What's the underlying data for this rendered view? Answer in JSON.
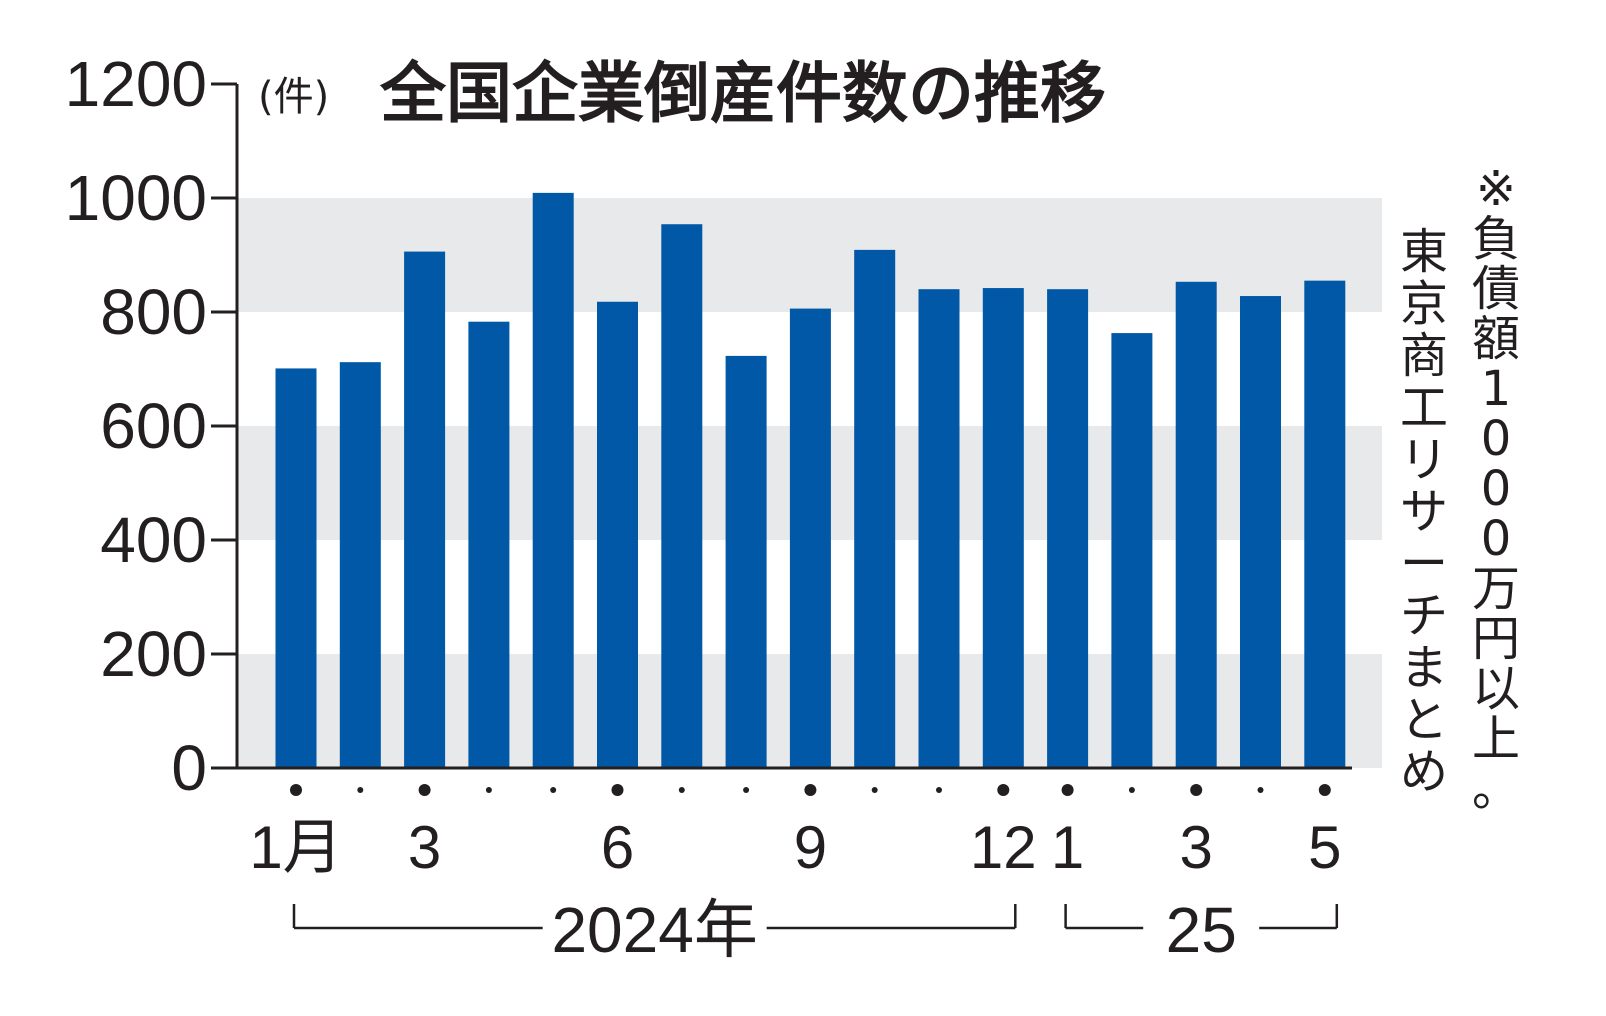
{
  "chart_data": {
    "type": "bar",
    "title": "全国企業倒産件数の推移",
    "unit_label": "(件)",
    "categories": [
      "2024-01",
      "2024-02",
      "2024-03",
      "2024-04",
      "2024-05",
      "2024-06",
      "2024-07",
      "2024-08",
      "2024-09",
      "2024-10",
      "2024-11",
      "2024-12",
      "2025-01",
      "2025-02",
      "2025-03",
      "2025-04",
      "2025-05"
    ],
    "values": [
      701,
      712,
      906,
      783,
      1009,
      818,
      954,
      723,
      806,
      909,
      840,
      842,
      840,
      763,
      853,
      828,
      855
    ],
    "ylim": [
      0,
      1200
    ],
    "yticks": [
      "0",
      "200",
      "400",
      "600",
      "800",
      "1000",
      "1200"
    ],
    "x_tick_labels": [
      {
        "index": 0,
        "text": "1月"
      },
      {
        "index": 2,
        "text": "3"
      },
      {
        "index": 5,
        "text": "6"
      },
      {
        "index": 8,
        "text": "9"
      },
      {
        "index": 11,
        "text": "12"
      },
      {
        "index": 12,
        "text": "1"
      },
      {
        "index": 14,
        "text": "3"
      },
      {
        "index": 16,
        "text": "5"
      }
    ],
    "year_groups": [
      {
        "label": "2024年",
        "start": 0,
        "end": 11
      },
      {
        "label": "25",
        "start": 12,
        "end": 16
      }
    ],
    "notes": [
      "※負債額1000万円以上。",
      "東京商工リサーチまとめ"
    ],
    "colors": {
      "bar": "#0058a6",
      "band": "#e8e9ea",
      "text": "#231f20"
    },
    "grid": "alternating-bands"
  }
}
